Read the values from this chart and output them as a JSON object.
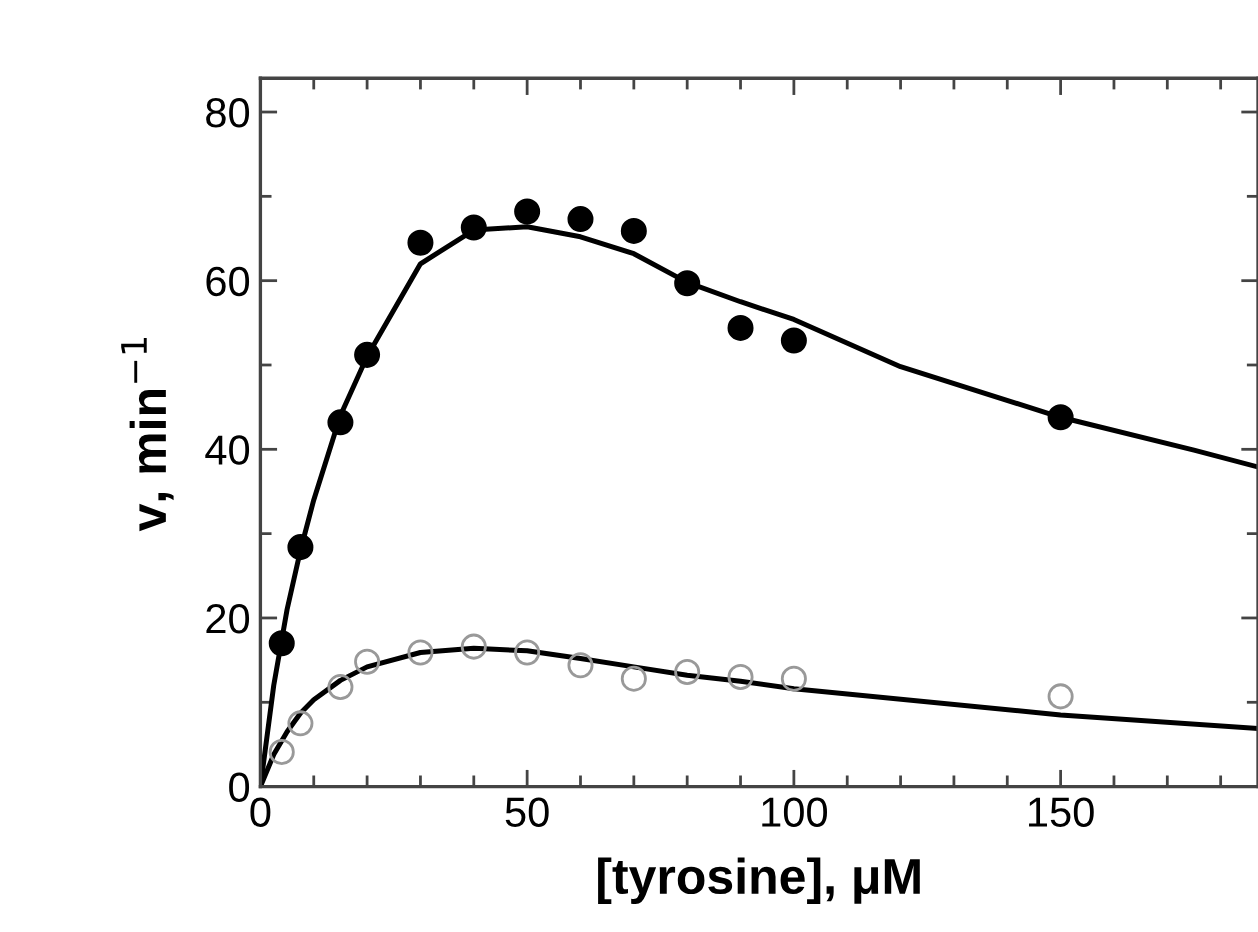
{
  "chart_data": {
    "type": "scatter",
    "xlabel": "[tyrosine], μM",
    "ylabel": "v, min$^{−1}$",
    "xlim": [
      0,
      187
    ],
    "ylim": [
      0,
      84
    ],
    "xticks": [
      0,
      {
        "value": 10,
        "label": null
      },
      {
        "value": 20,
        "label": null
      },
      {
        "value": 30,
        "label": null
      },
      {
        "value": 40,
        "label": null
      },
      50,
      {
        "value": 60,
        "label": null
      },
      {
        "value": 70,
        "label": null
      },
      {
        "value": 80,
        "label": null
      },
      {
        "value": 90,
        "label": null
      },
      100,
      {
        "value": 110,
        "label": null
      },
      {
        "value": 120,
        "label": null
      },
      {
        "value": 130,
        "label": null
      },
      {
        "value": 140,
        "label": null
      },
      150,
      {
        "value": 160,
        "label": null
      },
      {
        "value": 170,
        "label": null
      },
      {
        "value": 180,
        "label": null
      }
    ],
    "yticks": [
      0,
      {
        "value": 10,
        "label": null
      },
      20,
      {
        "value": 30,
        "label": null
      },
      40,
      {
        "value": 50,
        "label": null
      },
      60,
      {
        "value": 70,
        "label": null
      },
      80
    ],
    "grid": false,
    "legend": false,
    "series": [
      {
        "marker": "circle",
        "color": "#000000",
        "x": [
          4,
          7.5,
          15,
          20,
          30,
          40,
          50,
          60,
          70,
          80,
          90,
          100,
          150
        ],
        "values": [
          17,
          28.4,
          43.2,
          51.2,
          64.5,
          66.3,
          68.2,
          67.3,
          65.9,
          59.7,
          54.4,
          52.9,
          43.8
        ]
      },
      {
        "marker": "circle",
        "color": "#999999",
        "x": [
          4,
          7.5,
          15,
          20,
          30,
          40,
          50,
          60,
          70,
          80,
          90,
          100,
          150
        ],
        "values": [
          4.1,
          7.5,
          11.8,
          14.8,
          15.9,
          16.6,
          15.9,
          14.4,
          12.8,
          13.6,
          13,
          12.8,
          10.7
        ]
      },
      {
        "type": "line",
        "color": "#000000",
        "marker": "none",
        "line_style": "solid",
        "x": [
          0,
          2.5,
          5,
          7.5,
          10,
          15,
          20,
          30,
          40,
          50,
          60,
          70,
          80,
          90,
          100,
          120,
          150,
          175,
          187
        ],
        "values": [
          0,
          12,
          21,
          28,
          34,
          44,
          51,
          62,
          66,
          66.4,
          65.2,
          63.2,
          59.8,
          57.5,
          55.4,
          49.8,
          43.8,
          39.9,
          37.9
        ]
      },
      {
        "type": "line",
        "color": "#000000",
        "marker": "none",
        "line_style": "solid",
        "x": [
          0,
          2.5,
          5,
          7.5,
          10,
          15,
          20,
          30,
          40,
          50,
          60,
          70,
          80,
          90,
          100,
          150,
          187
        ],
        "values": [
          0,
          3.8,
          6.5,
          8.7,
          10.3,
          12.6,
          14.2,
          15.9,
          16.4,
          16.1,
          15.2,
          14.2,
          13.2,
          12.5,
          11.6,
          8.5,
          6.9
        ]
      }
    ]
  }
}
